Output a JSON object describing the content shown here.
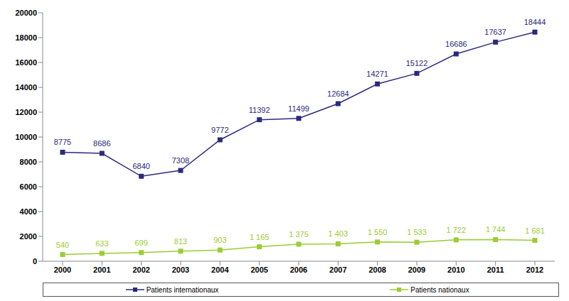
{
  "chart_data": {
    "type": "line",
    "categories": [
      "2000",
      "2001",
      "2002",
      "2003",
      "2004",
      "2005",
      "2006",
      "2007",
      "2008",
      "2009",
      "2010",
      "2011",
      "2012"
    ],
    "series": [
      {
        "name": "Patients internationaux",
        "color": "#2b2a7c",
        "marker": "square",
        "values": [
          8775,
          8686,
          6840,
          7308,
          9772,
          11392,
          11499,
          12684,
          14271,
          15122,
          16686,
          17637,
          18444
        ]
      },
      {
        "name": "Patients nationaux",
        "color": "#9acd32",
        "marker": "square",
        "values": [
          540,
          633,
          699,
          813,
          903,
          1165,
          1375,
          1403,
          1550,
          1533,
          1722,
          1744,
          1681
        ],
        "value_labels": [
          "540",
          "633",
          "699",
          "813",
          "903",
          "1 165",
          "1 375",
          "1 403",
          "1 550",
          "1 533",
          "1 722",
          "1 744",
          "1 681"
        ]
      }
    ],
    "ylim": [
      0,
      20000
    ],
    "yticks": [
      0,
      2000,
      4000,
      6000,
      8000,
      10000,
      12000,
      14000,
      16000,
      18000,
      20000
    ],
    "grid": false,
    "legend": "bottom",
    "data_labels": true
  }
}
